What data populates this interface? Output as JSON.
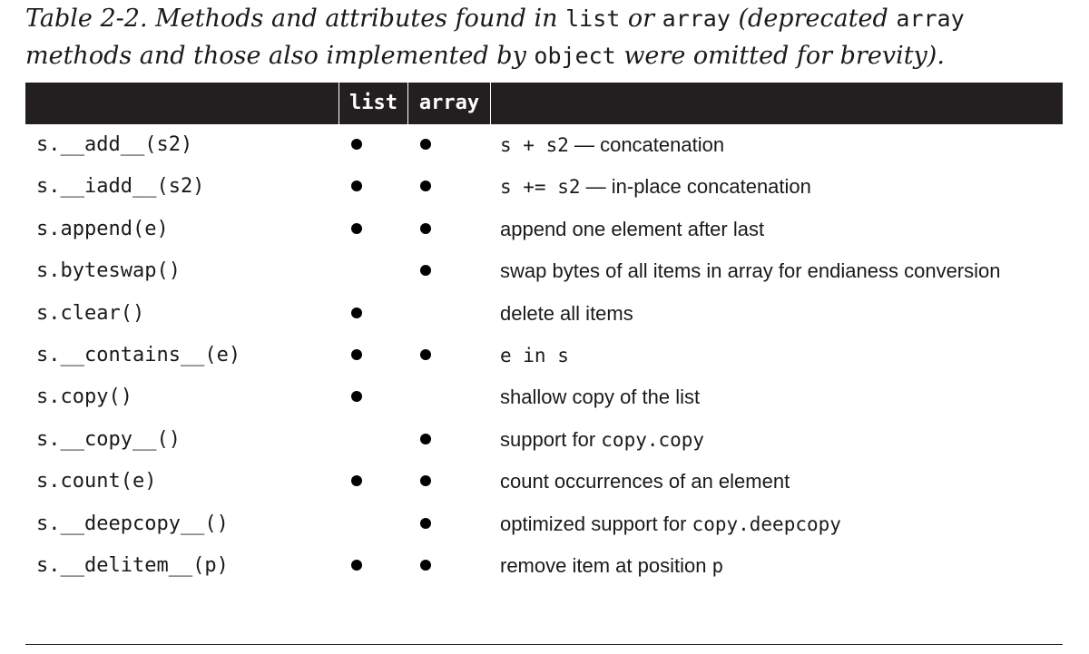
{
  "caption": {
    "part1": "Table 2-2. Methods and attributes found in ",
    "code1": "list",
    "part2": " or ",
    "code2": "array",
    "part3": " (deprecated ",
    "code3": "array",
    "part4": " methods and those also implemented by ",
    "code4": "object",
    "part5": " were omitted for brevity)."
  },
  "table": {
    "headers": {
      "method": "",
      "list": "list",
      "array": "array",
      "description": ""
    },
    "rows": [
      {
        "method": "s.__add__(s2)",
        "list": true,
        "array": true,
        "desc_code": "s + s2",
        "desc_text": " — concatenation",
        "desc_after": ""
      },
      {
        "method": "s.__iadd__(s2)",
        "list": true,
        "array": true,
        "desc_code": "s += s2",
        "desc_text": " — in-place concatenation",
        "desc_after": ""
      },
      {
        "method": "s.append(e)",
        "list": true,
        "array": true,
        "desc_code": "",
        "desc_text": "append one element after last",
        "desc_after": ""
      },
      {
        "method": "s.byteswap()",
        "list": false,
        "array": true,
        "desc_code": "",
        "desc_text": "swap bytes of all items in array for endianess conversion",
        "desc_after": ""
      },
      {
        "method": "s.clear()",
        "list": true,
        "array": false,
        "desc_code": "",
        "desc_text": "delete all items",
        "desc_after": ""
      },
      {
        "method": "s.__contains__(e)",
        "list": true,
        "array": true,
        "desc_code": "e in s",
        "desc_text": "",
        "desc_after": ""
      },
      {
        "method": "s.copy()",
        "list": true,
        "array": false,
        "desc_code": "",
        "desc_text": "shallow copy of the list",
        "desc_after": ""
      },
      {
        "method": "s.__copy__()",
        "list": false,
        "array": true,
        "desc_code": "",
        "desc_text": "support for ",
        "desc_after": "copy.copy"
      },
      {
        "method": "s.count(e)",
        "list": true,
        "array": true,
        "desc_code": "",
        "desc_text": "count occurrences of an element",
        "desc_after": ""
      },
      {
        "method": "s.__deepcopy__()",
        "list": false,
        "array": true,
        "desc_code": "",
        "desc_text": "optimized support for ",
        "desc_after": "copy.deepcopy"
      },
      {
        "method": "s.__delitem__(p)",
        "list": true,
        "array": true,
        "desc_code": "",
        "desc_text": "remove item at position ",
        "desc_after": "p"
      }
    ]
  }
}
